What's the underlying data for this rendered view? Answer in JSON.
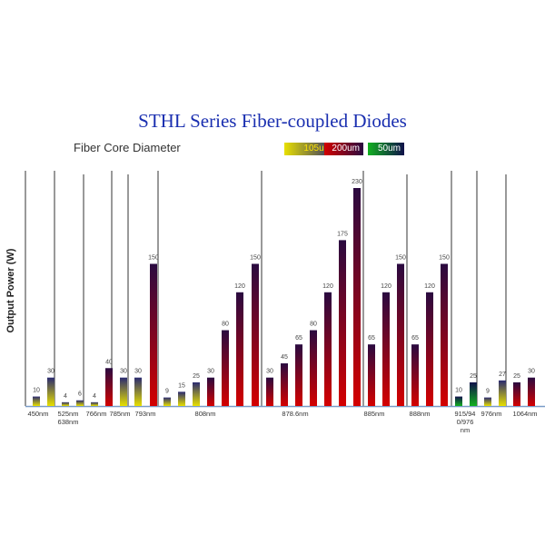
{
  "chart_data": {
    "type": "bar",
    "title": "STHL Series Fiber-coupled Diodes",
    "subtitle": "Fiber Core Diameter",
    "ylabel": "Output Power (W)",
    "ylim": [
      0,
      230
    ],
    "grid": false,
    "legend_placement": "top-right",
    "legend": [
      {
        "label": "105um",
        "colors": [
          "#e8e000",
          "#2a2a70"
        ]
      },
      {
        "label": "200um",
        "colors": [
          "#d40000",
          "#2a0a40"
        ]
      },
      {
        "label": "50um",
        "colors": [
          "#12b020",
          "#10104a"
        ]
      }
    ],
    "groups": [
      {
        "label": [
          "450nm"
        ],
        "bars": [
          {
            "value": 10,
            "fiber": "105um"
          },
          {
            "value": 30,
            "fiber": "105um"
          }
        ]
      },
      {
        "label": [
          "525nm",
          "638nm"
        ],
        "bars": [
          {
            "value": 4,
            "fiber": "105um"
          },
          {
            "value": 6,
            "fiber": "105um"
          }
        ]
      },
      {
        "label": [
          "766nm"
        ],
        "bars": [
          {
            "value": 4,
            "fiber": "105um"
          },
          {
            "value": 40,
            "fiber": "200um"
          }
        ]
      },
      {
        "label": [
          "785nm"
        ],
        "bars": [
          {
            "value": 30,
            "fiber": "105um"
          }
        ]
      },
      {
        "label": [
          "793nm"
        ],
        "bars": [
          {
            "value": 30,
            "fiber": "105um"
          },
          {
            "value": 150,
            "fiber": "200um"
          }
        ]
      },
      {
        "label": [
          "808nm"
        ],
        "bars": [
          {
            "value": 9,
            "fiber": "105um"
          },
          {
            "value": 15,
            "fiber": "105um"
          },
          {
            "value": 25,
            "fiber": "105um"
          },
          {
            "value": 30,
            "fiber": "200um"
          },
          {
            "value": 80,
            "fiber": "200um"
          },
          {
            "value": 120,
            "fiber": "200um"
          },
          {
            "value": 150,
            "fiber": "200um"
          }
        ]
      },
      {
        "label": [
          "878.6nm"
        ],
        "bars": [
          {
            "value": 30,
            "fiber": "200um"
          },
          {
            "value": 45,
            "fiber": "200um"
          },
          {
            "value": 65,
            "fiber": "200um"
          },
          {
            "value": 80,
            "fiber": "200um"
          },
          {
            "value": 120,
            "fiber": "200um"
          },
          {
            "value": 175,
            "fiber": "200um"
          },
          {
            "value": 230,
            "fiber": "200um"
          }
        ]
      },
      {
        "label": [
          "885nm"
        ],
        "bars": [
          {
            "value": 65,
            "fiber": "200um"
          },
          {
            "value": 120,
            "fiber": "200um"
          },
          {
            "value": 150,
            "fiber": "200um"
          }
        ]
      },
      {
        "label": [
          "888nm"
        ],
        "bars": [
          {
            "value": 65,
            "fiber": "200um"
          },
          {
            "value": 120,
            "fiber": "200um"
          },
          {
            "value": 150,
            "fiber": "200um"
          }
        ]
      },
      {
        "label": [
          "915/94",
          "0/976",
          "nm"
        ],
        "bars": [
          {
            "value": 10,
            "fiber": "50um"
          },
          {
            "value": 25,
            "fiber": "50um"
          }
        ]
      },
      {
        "label": [
          "976nm"
        ],
        "bars": [
          {
            "value": 9,
            "fiber": "105um"
          },
          {
            "value": 27,
            "fiber": "105um"
          }
        ]
      },
      {
        "label": [
          "1064nm"
        ],
        "bars": [
          {
            "value": 25,
            "fiber": "200um"
          },
          {
            "value": 30,
            "fiber": "200um"
          }
        ]
      }
    ]
  }
}
